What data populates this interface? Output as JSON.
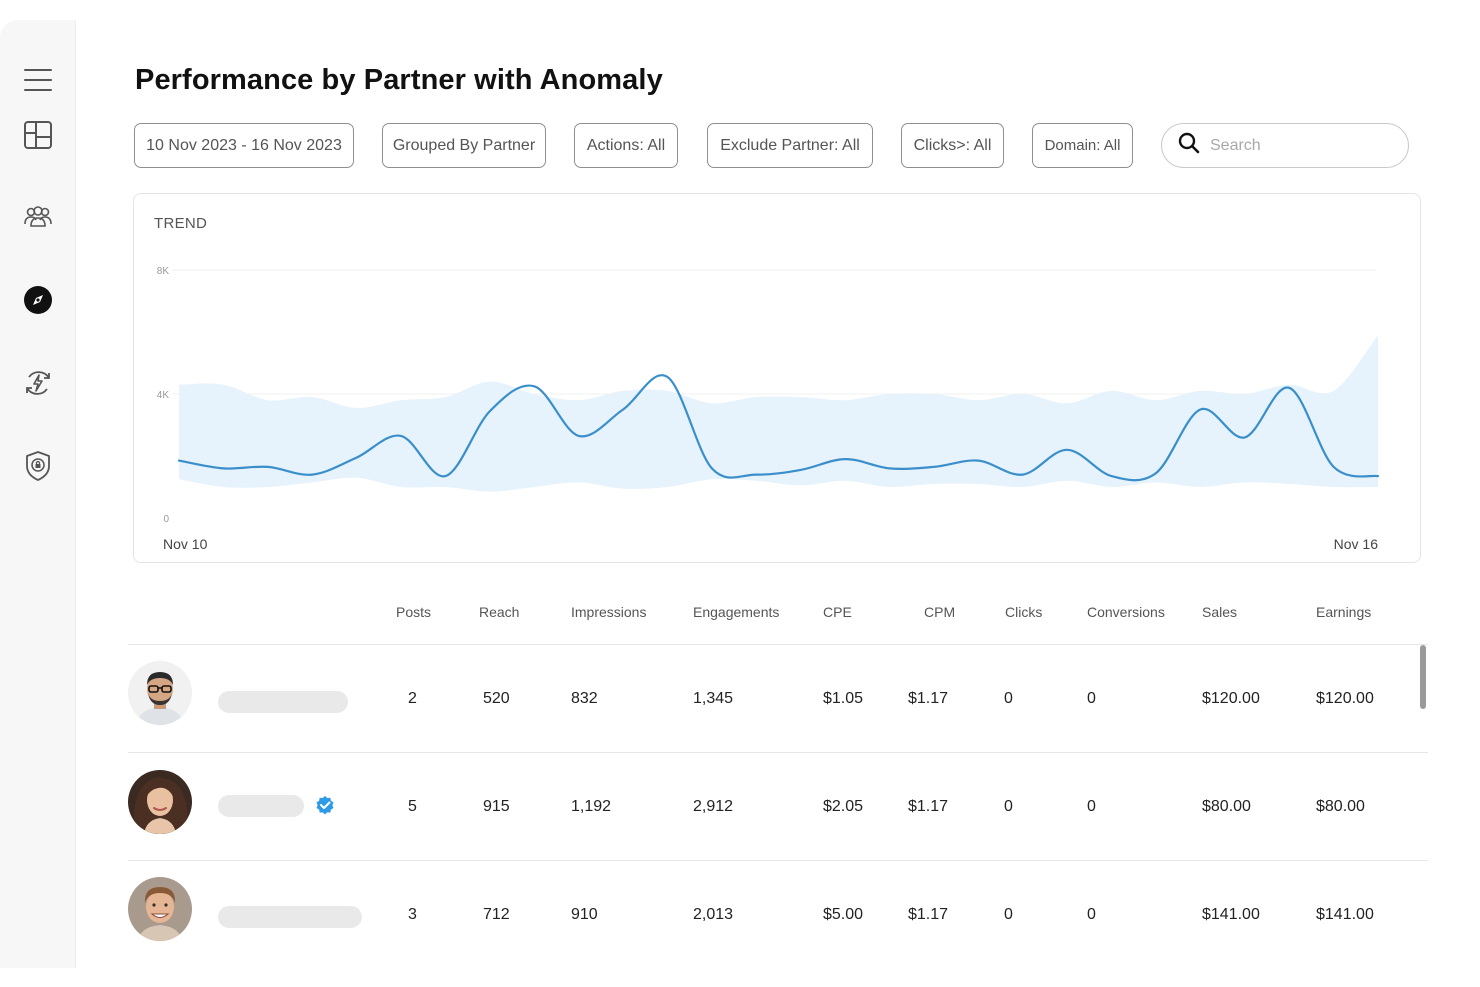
{
  "page": {
    "title": "Performance by Partner with Anomaly"
  },
  "sidebar": {
    "items": [
      {
        "icon": "menu-icon"
      },
      {
        "icon": "dashboard-icon"
      },
      {
        "icon": "users-group-icon"
      },
      {
        "icon": "compass-icon",
        "active": true
      },
      {
        "icon": "energy-icon"
      },
      {
        "icon": "shield-lock-icon"
      }
    ]
  },
  "filters": {
    "date_range": "10 Nov 2023 - 16 Nov 2023",
    "grouped_by": "Grouped By Partner",
    "actions": "Actions: All",
    "exclude_partner": "Exclude Partner: All",
    "clicks": "Clicks>: All",
    "domain": "Domain: All"
  },
  "search": {
    "placeholder": "Search",
    "value": ""
  },
  "chart": {
    "title": "TREND",
    "y_ticks": [
      "8K",
      "4K",
      "0"
    ],
    "x_start": "Nov 10",
    "x_end": "Nov 16"
  },
  "chart_data": {
    "type": "line",
    "title": "TREND",
    "x_range": [
      "Nov 10",
      "Nov 16"
    ],
    "ylim": [
      0,
      8000
    ],
    "y_ticks": [
      0,
      4000,
      8000
    ],
    "grid": true,
    "colors": {
      "line": "#3a8fcb",
      "band": "#e6f2fc"
    },
    "series": [
      {
        "values": [
          1850,
          1600,
          1650,
          1400,
          1950,
          2650,
          1350,
          3450,
          4250,
          2650,
          3500,
          4550,
          1600,
          1400,
          1550,
          1900,
          1600,
          1650,
          1850,
          1400,
          2200,
          1350,
          1450,
          3500,
          2600,
          4200,
          1650,
          1350
        ]
      }
    ],
    "band_upper": [
      4300,
      4300,
      3800,
      3900,
      3550,
      3800,
      3900,
      4400,
      4000,
      3800,
      4100,
      4100,
      3700,
      3900,
      3900,
      3800,
      4000,
      4000,
      3800,
      4000,
      3700,
      4100,
      3800,
      4100,
      4000,
      4300,
      4100,
      5900
    ],
    "band_lower": [
      1250,
      1000,
      1000,
      1150,
      1300,
      1000,
      1000,
      850,
      1000,
      1150,
      950,
      1000,
      1250,
      1200,
      1050,
      1200,
      1000,
      1100,
      1100,
      1000,
      1200,
      1000,
      1150,
      1000,
      1150,
      1100,
      1000,
      1000
    ]
  },
  "table": {
    "headers": {
      "posts": "Posts",
      "reach": "Reach",
      "impressions": "Impressions",
      "engagements": "Engagements",
      "cpe": "CPE",
      "cpm": "CPM",
      "clicks": "Clicks",
      "conversions": "Conversions",
      "sales": "Sales",
      "earnings": "Earnings"
    },
    "rows": [
      {
        "posts": "2",
        "reach": "520",
        "impressions": "832",
        "engagements": "1,345",
        "cpe": "$1.05",
        "cpm": "$1.17",
        "clicks": "0",
        "conversions": "0",
        "sales": "$120.00",
        "earnings": "$120.00",
        "verified": false
      },
      {
        "posts": "5",
        "reach": "915",
        "impressions": "1,192",
        "engagements": "2,912",
        "cpe": "$2.05",
        "cpm": "$1.17",
        "clicks": "0",
        "conversions": "0",
        "sales": "$80.00",
        "earnings": "$80.00",
        "verified": true
      },
      {
        "posts": "3",
        "reach": "712",
        "impressions": "910",
        "engagements": "2,013",
        "cpe": "$5.00",
        "cpm": "$1.17",
        "clicks": "0",
        "conversions": "0",
        "sales": "$141.00",
        "earnings": "$141.00",
        "verified": false
      }
    ]
  }
}
